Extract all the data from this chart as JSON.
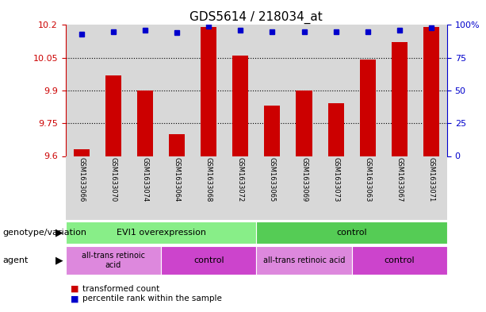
{
  "title": "GDS5614 / 218034_at",
  "samples": [
    "GSM1633066",
    "GSM1633070",
    "GSM1633074",
    "GSM1633064",
    "GSM1633068",
    "GSM1633072",
    "GSM1633065",
    "GSM1633069",
    "GSM1633073",
    "GSM1633063",
    "GSM1633067",
    "GSM1633071"
  ],
  "transformed_count": [
    9.63,
    9.97,
    9.9,
    9.7,
    10.19,
    10.06,
    9.83,
    9.9,
    9.84,
    10.04,
    10.12,
    10.19
  ],
  "percentile_rank": [
    93,
    95,
    96,
    94,
    99,
    96,
    95,
    95,
    95,
    95,
    96,
    98
  ],
  "y_min": 9.6,
  "y_max": 10.2,
  "y_ticks": [
    9.6,
    9.75,
    9.9,
    10.05,
    10.2
  ],
  "y_tick_labels": [
    "9.6",
    "9.75",
    "9.9",
    "10.05",
    "10.2"
  ],
  "right_y_ticks": [
    0,
    25,
    50,
    75,
    100
  ],
  "right_y_labels": [
    "0",
    "25",
    "50",
    "75",
    "100%"
  ],
  "bar_color": "#cc0000",
  "dot_color": "#0000cc",
  "bar_width": 0.5,
  "genotype_groups": [
    {
      "label": "EVI1 overexpression",
      "start": 0,
      "end": 6,
      "color": "#88ee88"
    },
    {
      "label": "control",
      "start": 6,
      "end": 12,
      "color": "#55cc55"
    }
  ],
  "agent_groups": [
    {
      "label": "all-trans retinoic\nacid",
      "start": 0,
      "end": 3,
      "color": "#dd88dd"
    },
    {
      "label": "control",
      "start": 3,
      "end": 6,
      "color": "#cc44cc"
    },
    {
      "label": "all-trans retinoic acid",
      "start": 6,
      "end": 9,
      "color": "#dd88dd"
    },
    {
      "label": "control",
      "start": 9,
      "end": 12,
      "color": "#cc44cc"
    }
  ],
  "col_bg_color": "#d8d8d8",
  "title_fontsize": 11,
  "tick_fontsize": 8,
  "sample_fontsize": 6,
  "label_fontsize": 8
}
